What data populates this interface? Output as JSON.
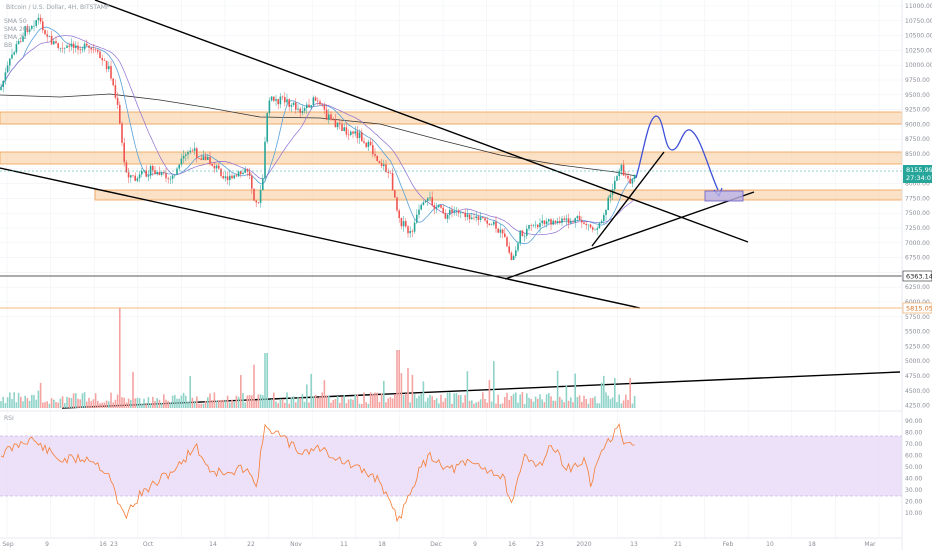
{
  "chart_data": {
    "type": "candlestick",
    "title": "Bitcoin / U.S. Dollar, 4H, BITSTAMP",
    "legend": [
      "SMA 50",
      "SMA 200",
      "EMA 21",
      "BB"
    ],
    "price_axis_ticks": [
      "11000.00",
      "10750.00",
      "10500.00",
      "10250.00",
      "10000.00",
      "9750.00",
      "9500.00",
      "9250.00",
      "9000.00",
      "8750.00",
      "8500.00",
      "8250.00",
      "8000.00",
      "7750.00",
      "7500.00",
      "7250.00",
      "7000.00",
      "6750.00",
      "6500.00",
      "6250.00",
      "6000.00",
      "5750.00",
      "5500.00",
      "5250.00",
      "5000.00",
      "4750.00",
      "4500.00",
      "4250.00"
    ],
    "time_axis_ticks": [
      "Sep",
      "9",
      "16",
      "23",
      "Oct",
      "14",
      "22",
      "Nov",
      "11",
      "18",
      "Dec",
      "9",
      "16",
      "23",
      "2020",
      "13",
      "21",
      "Feb",
      "10",
      "18",
      "Mar"
    ],
    "current_price": "8155.99",
    "countdown": "27:34:07",
    "marked_levels": [
      "6363.14",
      "5815.05"
    ],
    "rsi_label": "RSI",
    "rsi_ticks": [
      "90.00",
      "80.00",
      "70.00",
      "60.00",
      "50.00",
      "40.00",
      "30.00",
      "20.00",
      "10.00"
    ],
    "colors": {
      "up": "#26a69a",
      "down": "#ef5350",
      "zone": "#f7c896",
      "zone_border": "#f0a050",
      "rsi_band": "#e9dcf7",
      "rsi_line": "#f57c34",
      "projection": "#3f51d6",
      "sma200": "#333333",
      "ema": "#5aa0d8"
    }
  }
}
